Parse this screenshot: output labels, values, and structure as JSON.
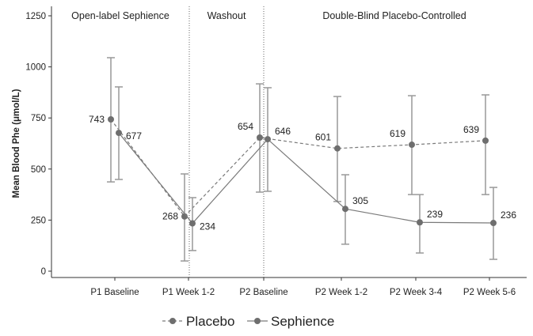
{
  "chart_data": {
    "type": "line",
    "title": "",
    "xlabel": "",
    "ylabel": "Mean Blood Phe (μmol/L)",
    "ylim": [
      0,
      1250
    ],
    "yticks": [
      0,
      250,
      500,
      750,
      1000,
      1250
    ],
    "categories": [
      "P1 Baseline",
      "P1 Week 1-2",
      "P2 Baseline",
      "P2 Week 1-2",
      "P2 Week 3-4",
      "P2 Week 5-6"
    ],
    "phases": [
      {
        "label": "Open-label Sephience"
      },
      {
        "label": "Washout"
      },
      {
        "label": "Double-Blind Placebo-Controlled"
      }
    ],
    "grid": false,
    "legend_placement": "bottom",
    "series": [
      {
        "name": "Placebo",
        "line_style": "dashed",
        "color": "#7a7a7a",
        "values": [
          743,
          268,
          654,
          601,
          619,
          639
        ],
        "error_upper": [
          1045,
          476,
          917,
          855,
          859,
          863
        ],
        "error_lower": [
          437,
          50,
          387,
          341,
          375,
          375
        ],
        "labels": [
          "743",
          "268",
          "654",
          "601",
          "619",
          "639"
        ]
      },
      {
        "name": "Sephience",
        "line_style": "solid",
        "color": "#7a7a7a",
        "values": [
          677,
          234,
          646,
          305,
          239,
          236
        ],
        "error_upper": [
          902,
          360,
          898,
          472,
          375,
          410
        ],
        "error_lower": [
          449,
          101,
          391,
          132,
          89,
          58
        ],
        "labels": [
          "677",
          "234",
          "646",
          "305",
          "239",
          "236"
        ]
      }
    ]
  }
}
